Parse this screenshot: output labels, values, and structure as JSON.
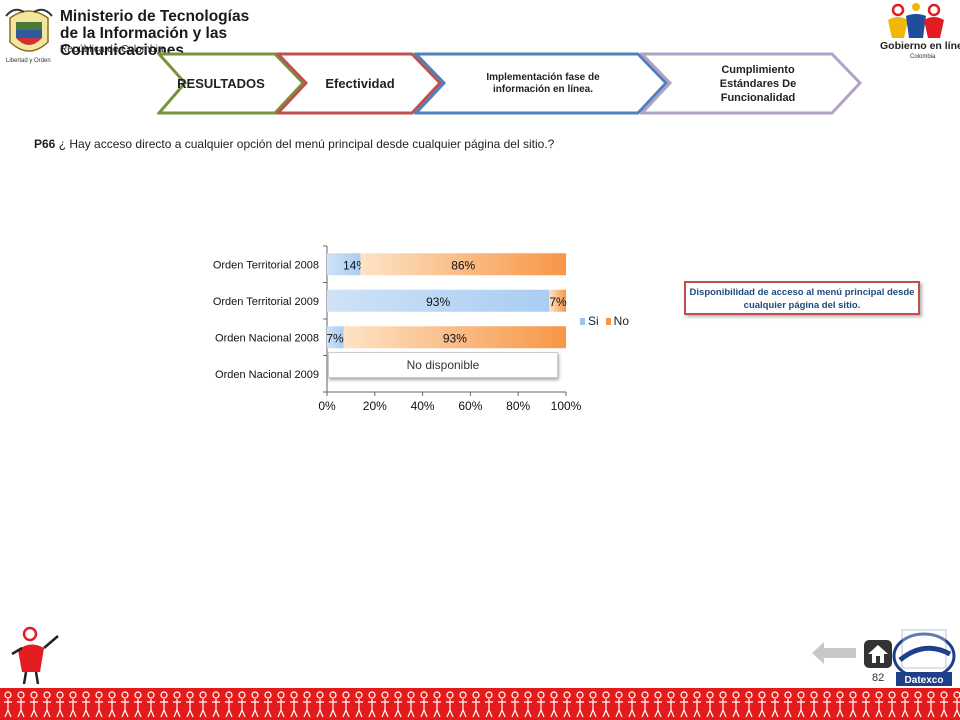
{
  "header": {
    "ministry_title": "Ministerio de Tecnologías de la Información y las Comunicaciones",
    "ministry_subtitle": "República de Colombia",
    "seal_motto": "Libertad y Orden",
    "gel_logo_text": "Gobierno en línea",
    "gel_logo_sub": "Colombia"
  },
  "nav": {
    "tabs": [
      {
        "label": "RESULTADOS",
        "color": "#77933c"
      },
      {
        "label": "Efectividad",
        "color": "#c0504d"
      },
      {
        "label": "Implementación fase de información en línea.",
        "color": "#4f81bd"
      },
      {
        "label": "Cumplimiento Estándares De Funcionalidad",
        "color": "#b3a2c7"
      }
    ]
  },
  "question": {
    "number": "P66",
    "text": "¿ Hay acceso directo a cualquier opción del menú principal desde cualquier página del sitio.?"
  },
  "chart_data": {
    "type": "bar",
    "orientation": "horizontal",
    "stacked": true,
    "categories": [
      "Orden Territorial 2008",
      "Orden Territorial 2009",
      "Orden Nacional 2008",
      "Orden Nacional 2009"
    ],
    "series": [
      {
        "name": "Si",
        "values": [
          14,
          93,
          7,
          null
        ],
        "labels": [
          "14%",
          "93%",
          "7%",
          ""
        ],
        "color": "#9cc3ee"
      },
      {
        "name": "No",
        "values": [
          86,
          7,
          93,
          null
        ],
        "labels": [
          "86%",
          "7%",
          "93%",
          ""
        ],
        "color": "#f79646"
      }
    ],
    "x_ticks": [
      "0%",
      "20%",
      "40%",
      "60%",
      "80%",
      "100%"
    ],
    "xlim": [
      0,
      100
    ],
    "legend_position": "right"
  },
  "chart_note": "No disponible",
  "callout": "Disponibilidad de acceso al menú principal desde cualquier página del sitio.",
  "footer": {
    "page_number": "82",
    "datexco_label": "Datexco"
  }
}
